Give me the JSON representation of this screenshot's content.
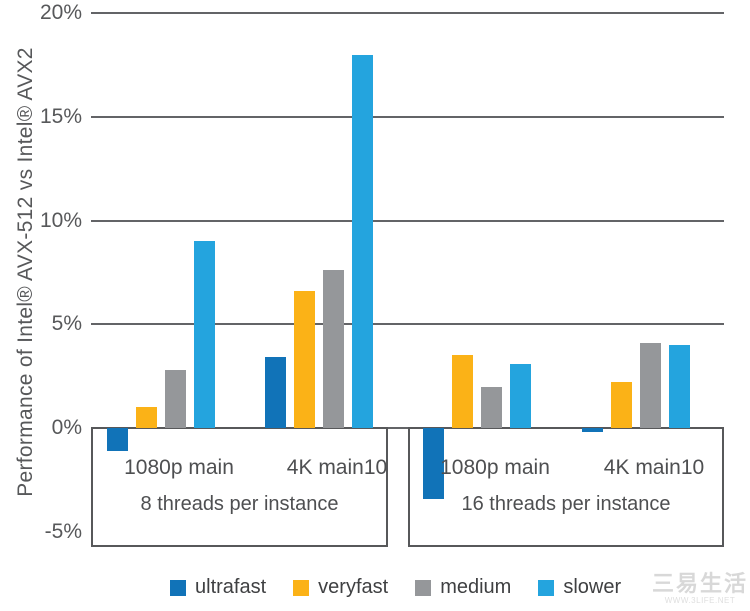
{
  "chart_data": {
    "type": "bar",
    "title": "",
    "ylabel": "Performance of Intel® AVX-512 vs Intel® AVX2",
    "xlabel": "",
    "ylim": [
      -5,
      20
    ],
    "y_ticks": [
      "20%",
      "15%",
      "10%",
      "5%",
      "0%",
      "-5%"
    ],
    "grid": true,
    "legend_position": "bottom",
    "categories": [
      "1080p main",
      "4K main10",
      "1080p main",
      "4K main10"
    ],
    "groups": [
      {
        "label": "8 threads per instance",
        "category_indexes": [
          0,
          1
        ]
      },
      {
        "label": "16 threads per instance",
        "category_indexes": [
          2,
          3
        ]
      }
    ],
    "series": [
      {
        "name": "ultrafast",
        "color": "#1173b8",
        "values": [
          -1.1,
          3.4,
          -3.4,
          -0.2
        ]
      },
      {
        "name": "veryfast",
        "color": "#fbb217",
        "values": [
          1.0,
          6.6,
          3.5,
          2.2
        ]
      },
      {
        "name": "medium",
        "color": "#95979a",
        "values": [
          2.8,
          7.6,
          2.0,
          4.1
        ]
      },
      {
        "name": "slower",
        "color": "#24a4de",
        "values": [
          9.0,
          18.0,
          3.1,
          4.0
        ]
      }
    ]
  },
  "watermark": {
    "text": "三易生活",
    "subtext": "WWW.3LIFE.NET"
  }
}
